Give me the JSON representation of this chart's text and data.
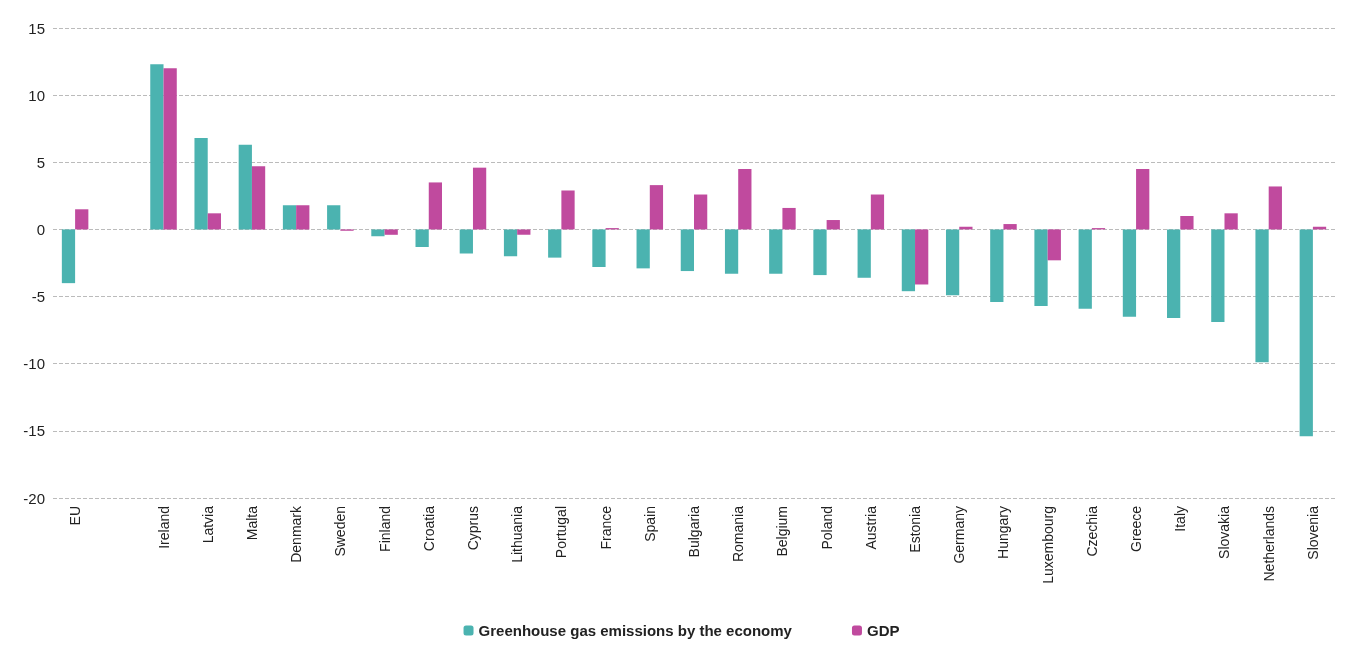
{
  "chart_data": {
    "type": "bar",
    "categories": [
      "EU",
      null,
      "Ireland",
      "Latvia",
      "Malta",
      "Denmark",
      "Sweden",
      "Finland",
      "Croatia",
      "Cyprus",
      "Lithuania",
      "Portugal",
      "France",
      "Spain",
      "Bulgaria",
      "Romania",
      "Belgium",
      "Poland",
      "Austria",
      "Estonia",
      "Germany",
      "Hungary",
      "Luxembourg",
      "Czechia",
      "Greece",
      "Italy",
      "Slovakia",
      "Netherlands",
      "Slovenia"
    ],
    "series": [
      {
        "name": "Greenhouse gas emissions by the economy",
        "color": "#4bb3b0",
        "values": [
          -4.0,
          null,
          12.3,
          6.8,
          6.3,
          1.8,
          1.8,
          -0.5,
          -1.3,
          -1.8,
          -2.0,
          -2.1,
          -2.8,
          -2.9,
          -3.1,
          -3.3,
          -3.3,
          -3.4,
          -3.6,
          -4.6,
          -4.9,
          -5.4,
          -5.7,
          -5.9,
          -6.5,
          -6.6,
          -6.9,
          -9.9,
          -15.4
        ]
      },
      {
        "name": "GDP",
        "color": "#c04a9e",
        "values": [
          1.5,
          null,
          12.0,
          1.2,
          4.7,
          1.8,
          -0.1,
          -0.4,
          3.5,
          4.6,
          -0.4,
          2.9,
          0.1,
          3.3,
          2.6,
          4.5,
          1.6,
          0.7,
          2.6,
          -4.1,
          0.2,
          0.4,
          -2.3,
          0.1,
          4.5,
          1.0,
          1.2,
          3.2,
          0.2
        ]
      }
    ],
    "ylim": [
      -20,
      15
    ],
    "yticks": [
      -20,
      -15,
      -10,
      -5,
      0,
      5,
      10,
      15
    ],
    "grid": "y",
    "legend": "bottom"
  }
}
